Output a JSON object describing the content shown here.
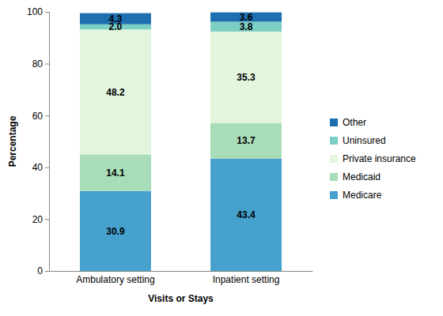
{
  "chart_data": {
    "type": "bar",
    "stacked": true,
    "data_labels": true,
    "legend": "right",
    "x_label": "Visits or Stays",
    "y_label": "Percentage",
    "categories": [
      "Ambulatory setting",
      "Inpatient setting"
    ],
    "ylim": [
      0,
      100
    ],
    "yticks": [
      0,
      20,
      40,
      60,
      80,
      100
    ],
    "series": [
      {
        "name": "Medicare",
        "color": "#46a2cd",
        "values": [
          30.9,
          43.4
        ]
      },
      {
        "name": "Medicaid",
        "color": "#a9dcb8",
        "values": [
          14.1,
          13.7
        ]
      },
      {
        "name": "Private insurance",
        "color": "#e3f5dd",
        "values": [
          48.2,
          35.3
        ]
      },
      {
        "name": "Uninsured",
        "color": "#7ccfc4",
        "values": [
          2,
          3.8
        ],
        "value_labels": [
          "2.0",
          "3.8"
        ]
      },
      {
        "name": "Other",
        "color": "#1d6fb0",
        "values": [
          4.3,
          3.6
        ]
      }
    ]
  }
}
